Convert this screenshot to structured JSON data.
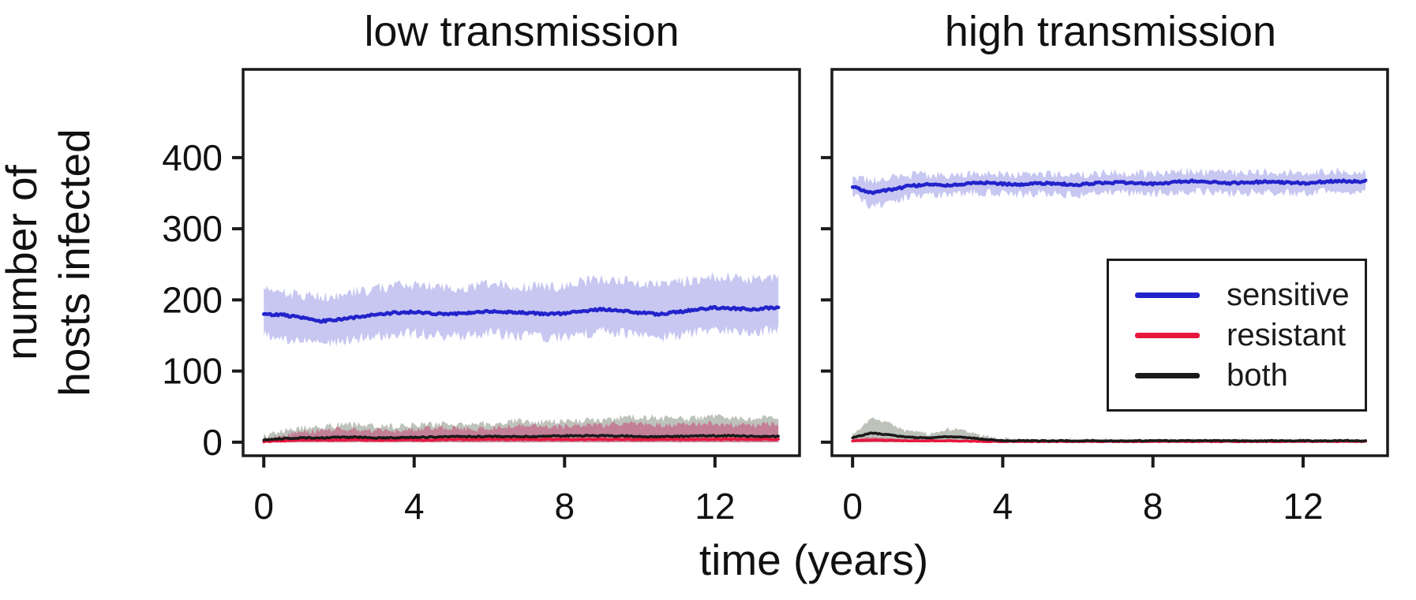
{
  "figure": {
    "background": "#ffffff"
  },
  "chart_data": {
    "type": "line",
    "xlabel": "time (years)",
    "ylabel": "number of hosts infected",
    "ylabel_line1": "number of",
    "ylabel_line2": "hosts infected",
    "grid": false,
    "legend_position": "inside right panel, middle right",
    "legend": {
      "entries": [
        {
          "label": "sensitive",
          "color": "#2323cc"
        },
        {
          "label": "resistant",
          "color": "#e8173d"
        },
        {
          "label": "both",
          "color": "#1a1a1a"
        }
      ]
    },
    "panels": [
      {
        "title": "low transmission",
        "xlim": [
          -0.55,
          14.25
        ],
        "ylim": [
          -19,
          524
        ],
        "xticks": [
          0,
          4,
          8,
          12
        ],
        "yticks": [
          0,
          100,
          200,
          300,
          400
        ],
        "ytick_labels": true,
        "x": [
          0,
          0.5,
          1,
          1.5,
          2,
          2.5,
          3,
          3.5,
          4,
          4.5,
          5,
          5.5,
          6,
          6.5,
          7,
          7.5,
          8,
          8.5,
          9,
          9.5,
          10,
          10.5,
          11,
          11.5,
          12,
          12.5,
          13,
          13.5,
          13.7
        ],
        "series": [
          {
            "name": "sensitive",
            "color": "#2323cc",
            "band_color": "#c7c7f1",
            "band_opacity": 1,
            "line_width": 4.5,
            "band_jitter": 8,
            "lo_jitter": 8,
            "line_jitter": 1.5,
            "mean": [
              180,
              179,
              175,
              170,
              172,
              176,
              179,
              182,
              183,
              181,
              180,
              182,
              184,
              183,
              182,
              180,
              181,
              184,
              187,
              185,
              182,
              180,
              183,
              186,
              189,
              188,
              187,
              189,
              190
            ],
            "hi": [
              212,
              210,
              207,
              204,
              207,
              212,
              216,
              219,
              221,
              219,
              217,
              219,
              223,
              221,
              219,
              217,
              221,
              225,
              229,
              227,
              223,
              221,
              225,
              229,
              233,
              231,
              229,
              231,
              231
            ],
            "lo": [
              150,
              147,
              142,
              139,
              141,
              146,
              149,
              151,
              153,
              151,
              149,
              151,
              153,
              151,
              149,
              146,
              149,
              153,
              156,
              153,
              149,
              146,
              151,
              155,
              159,
              157,
              155,
              157,
              158
            ]
          },
          {
            "name": "resistant",
            "color": "#e8173d",
            "band_color": "#c4738f",
            "band_opacity": 0.85,
            "line_width": 3.5,
            "band_jitter": 4,
            "lo_jitter": 0.4,
            "line_jitter": 0.7,
            "mean": [
              1,
              2,
              3,
              3,
              3,
              3,
              3,
              3,
              3,
              3,
              4,
              4,
              4,
              4,
              4,
              4,
              4,
              4,
              4,
              4,
              4,
              4,
              4,
              4,
              4,
              4,
              4,
              4,
              4
            ],
            "hi": [
              4,
              10,
              14,
              16,
              18,
              18,
              16,
              16,
              18,
              20,
              20,
              18,
              20,
              22,
              24,
              22,
              22,
              24,
              24,
              26,
              26,
              24,
              24,
              26,
              26,
              24,
              24,
              26,
              26
            ],
            "lo": [
              0,
              0,
              0,
              0,
              0,
              0,
              0,
              0,
              0,
              0,
              0,
              0,
              0,
              0,
              0,
              0,
              0,
              0,
              0,
              0,
              0,
              0,
              0,
              0,
              0,
              0,
              0,
              0,
              0
            ]
          },
          {
            "name": "both",
            "color": "#1a1a1a",
            "band_color": "#bdc2ba",
            "band_opacity": 1,
            "line_width": 3.5,
            "band_jitter": 5,
            "lo_jitter": 0.4,
            "line_jitter": 0.9,
            "mean": [
              3,
              5,
              6,
              6,
              7,
              7,
              6,
              6,
              7,
              7,
              8,
              8,
              8,
              8,
              8,
              8,
              9,
              9,
              9,
              9,
              8,
              8,
              8,
              9,
              9,
              9,
              8,
              8,
              8
            ],
            "hi": [
              8,
              16,
              20,
              22,
              24,
              24,
              22,
              22,
              24,
              26,
              26,
              24,
              26,
              28,
              30,
              28,
              28,
              30,
              32,
              34,
              36,
              34,
              32,
              34,
              36,
              34,
              32,
              34,
              34
            ],
            "lo": [
              0,
              0,
              0,
              0,
              0,
              0,
              0,
              0,
              0,
              0,
              0,
              0,
              0,
              0,
              0,
              0,
              0,
              0,
              0,
              0,
              0,
              0,
              0,
              0,
              0,
              0,
              0,
              0,
              0
            ]
          }
        ]
      },
      {
        "title": "high transmission",
        "xlim": [
          -0.55,
          14.25
        ],
        "ylim": [
          -19,
          524
        ],
        "xticks": [
          0,
          4,
          8,
          12
        ],
        "yticks": [
          0,
          100,
          200,
          300,
          400
        ],
        "ytick_labels": false,
        "x": [
          0,
          0.5,
          1,
          1.5,
          2,
          2.5,
          3,
          3.5,
          4,
          4.5,
          5,
          5.5,
          6,
          6.5,
          7,
          7.5,
          8,
          8.5,
          9,
          9.5,
          10,
          10.5,
          11,
          11.5,
          12,
          12.5,
          13,
          13.5,
          13.7
        ],
        "series": [
          {
            "name": "sensitive",
            "color": "#2323cc",
            "band_color": "#c7c7f1",
            "band_opacity": 1,
            "line_width": 4.5,
            "band_jitter": 6,
            "lo_jitter": 6,
            "line_jitter": 1.5,
            "mean": [
              360,
              350,
              355,
              360,
              362,
              361,
              363,
              365,
              363,
              362,
              364,
              363,
              362,
              364,
              365,
              364,
              363,
              365,
              367,
              366,
              364,
              365,
              366,
              365,
              364,
              366,
              367,
              366,
              367
            ],
            "hi": [
              372,
              368,
              372,
              375,
              376,
              375,
              377,
              379,
              377,
              376,
              378,
              377,
              376,
              378,
              379,
              378,
              377,
              379,
              381,
              380,
              378,
              379,
              380,
              379,
              378,
              380,
              381,
              380,
              380
            ],
            "lo": [
              348,
              330,
              338,
              345,
              348,
              347,
              349,
              351,
              349,
              348,
              350,
              349,
              348,
              350,
              351,
              350,
              349,
              351,
              353,
              352,
              350,
              351,
              352,
              351,
              350,
              352,
              353,
              352,
              354
            ]
          },
          {
            "name": "resistant",
            "color": "#e8173d",
            "band_color": "#c4738f",
            "band_opacity": 0.85,
            "line_width": 3.5,
            "band_jitter": 1,
            "lo_jitter": 0.3,
            "line_jitter": 0.4,
            "mean": [
              2,
              3,
              2.5,
              2,
              2,
              2,
              1.5,
              1,
              1,
              1,
              1,
              1,
              1,
              1,
              1,
              1,
              1,
              1,
              1,
              1,
              1,
              1,
              1,
              1,
              1,
              1,
              1,
              1,
              1
            ],
            "hi": [
              4,
              7,
              6,
              4,
              3,
              3,
              2.5,
              2,
              1.5,
              1.5,
              1.5,
              1.5,
              1.5,
              1.5,
              1.5,
              1.5,
              1.5,
              1.5,
              1.5,
              1.5,
              1.5,
              1.5,
              1.5,
              1.5,
              1.5,
              1.5,
              1.5,
              1.5,
              1.5
            ],
            "lo": [
              0,
              0,
              0,
              0,
              0,
              0,
              0,
              0,
              0,
              0,
              0,
              0,
              0,
              0,
              0,
              0,
              0,
              0,
              0,
              0,
              0,
              0,
              0,
              0,
              0,
              0,
              0,
              0,
              0
            ]
          },
          {
            "name": "both",
            "color": "#1a1a1a",
            "band_color": "#bdc2ba",
            "band_opacity": 1,
            "line_width": 3.5,
            "band_jitter": 3,
            "lo_jitter": 0.3,
            "line_jitter": 0.6,
            "mean": [
              6,
              13,
              10,
              7,
              6,
              8,
              7,
              4,
              2,
              2,
              2,
              2,
              2,
              2,
              2,
              2,
              2,
              2,
              2,
              2,
              2,
              2,
              2,
              2,
              2,
              2,
              2,
              2,
              2
            ],
            "hi": [
              10,
              34,
              26,
              14,
              12,
              18,
              16,
              8,
              4,
              3,
              3,
              3,
              3,
              3,
              3,
              3,
              3,
              3,
              3,
              3,
              3,
              3,
              3,
              3,
              3,
              3,
              3,
              3,
              3
            ],
            "lo": [
              0,
              0,
              0,
              0,
              0,
              0,
              0,
              0,
              0,
              0,
              0,
              0,
              0,
              0,
              0,
              0,
              0,
              0,
              0,
              0,
              0,
              0,
              0,
              0,
              0,
              0,
              0,
              0,
              0
            ]
          }
        ]
      }
    ]
  }
}
